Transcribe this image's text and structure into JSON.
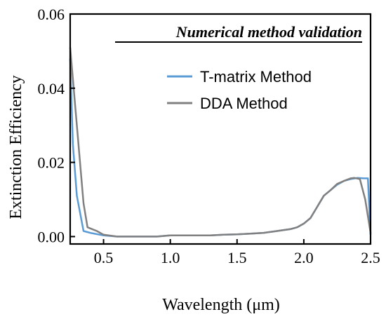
{
  "chart_data": {
    "type": "line",
    "title": "Numerical method validation",
    "xlabel": "Wavelength (μm)",
    "ylabel": "Extinction Efficiency",
    "xlim": [
      0.25,
      2.5
    ],
    "ylim": [
      -0.002,
      0.06
    ],
    "xticks": [
      0.5,
      1.0,
      1.5,
      2.0,
      2.5
    ],
    "xtick_labels": [
      "0.5",
      "1.0",
      "1.5",
      "2.0",
      "2.5"
    ],
    "yticks": [
      0.0,
      0.02,
      0.04,
      0.06
    ],
    "ytick_labels": [
      "0.00",
      "0.02",
      "0.04",
      "0.06"
    ],
    "grid": false,
    "legend_position": "top-right",
    "series": [
      {
        "name": "T-matrix Method",
        "color": "#5b9bd5",
        "x": [
          0.25,
          0.27,
          0.3,
          0.35,
          0.4,
          0.5,
          0.6,
          0.7,
          0.8,
          0.9,
          1.0,
          1.1,
          1.2,
          1.3,
          1.4,
          1.5,
          1.6,
          1.7,
          1.8,
          1.9,
          1.95,
          2.0,
          2.05,
          2.1,
          2.15,
          2.2,
          2.25,
          2.3,
          2.35,
          2.4,
          2.45,
          2.48,
          2.5
        ],
        "y": [
          0.048,
          0.025,
          0.011,
          0.0015,
          0.001,
          0.0003,
          0.0,
          0.0,
          0.0,
          0.0,
          0.0003,
          0.0003,
          0.0003,
          0.0003,
          0.0005,
          0.0006,
          0.0008,
          0.001,
          0.0015,
          0.002,
          0.0025,
          0.0035,
          0.005,
          0.008,
          0.011,
          0.0125,
          0.014,
          0.015,
          0.0155,
          0.0158,
          0.0157,
          0.0157,
          0.0005
        ]
      },
      {
        "name": "DDA Method",
        "color": "#808080",
        "x": [
          0.25,
          0.3,
          0.35,
          0.38,
          0.45,
          0.5,
          0.6,
          0.7,
          0.8,
          0.9,
          1.0,
          1.1,
          1.2,
          1.3,
          1.4,
          1.5,
          1.6,
          1.7,
          1.8,
          1.9,
          1.95,
          2.0,
          2.05,
          2.1,
          2.15,
          2.2,
          2.25,
          2.3,
          2.35,
          2.38,
          2.42,
          2.46,
          2.5
        ],
        "y": [
          0.051,
          0.03,
          0.009,
          0.0025,
          0.0015,
          0.0005,
          0.0,
          0.0,
          0.0,
          0.0,
          0.0003,
          0.0003,
          0.0003,
          0.0003,
          0.0005,
          0.0006,
          0.0008,
          0.001,
          0.0015,
          0.002,
          0.0025,
          0.0035,
          0.005,
          0.008,
          0.011,
          0.0125,
          0.0142,
          0.015,
          0.0157,
          0.0158,
          0.0155,
          0.01,
          0.001
        ]
      }
    ]
  }
}
